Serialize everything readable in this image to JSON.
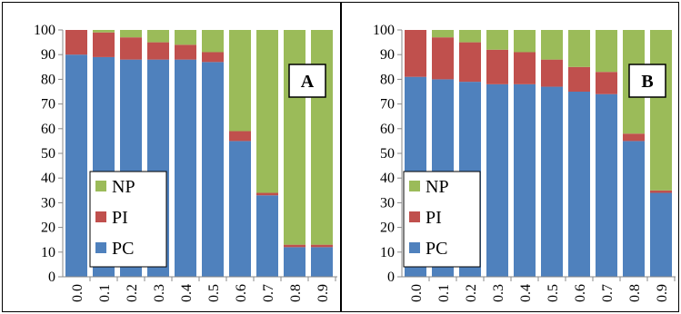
{
  "chart_data": [
    {
      "type": "bar",
      "stacked": true,
      "panel_label": "A",
      "categories": [
        "0.0",
        "0.1",
        "0.2",
        "0.3",
        "0.4",
        "0.5",
        "0.6",
        "0.7",
        "0.8",
        "0.9"
      ],
      "series": [
        {
          "name": "PC",
          "color": "#4f81bd",
          "values": [
            90,
            89,
            88,
            88,
            88,
            87,
            55,
            33,
            12,
            12
          ]
        },
        {
          "name": "PI",
          "color": "#c0504d",
          "values": [
            10,
            10,
            9,
            7,
            6,
            4,
            4,
            1,
            1,
            1
          ]
        },
        {
          "name": "NP",
          "color": "#9bbb59",
          "values": [
            0,
            1,
            3,
            5,
            6,
            9,
            41,
            66,
            87,
            87
          ]
        }
      ],
      "y_ticks": [
        "0",
        "10",
        "20",
        "30",
        "40",
        "50",
        "60",
        "70",
        "80",
        "90",
        "100"
      ],
      "ylim": [
        0,
        100
      ],
      "grid": false,
      "legend_position": "lower-left",
      "legend_entries": [
        "NP",
        "PI",
        "PC"
      ]
    },
    {
      "type": "bar",
      "stacked": true,
      "panel_label": "B",
      "categories": [
        "0.0",
        "0.1",
        "0.2",
        "0.3",
        "0.4",
        "0.5",
        "0.6",
        "0.7",
        "0.8",
        "0.9"
      ],
      "series": [
        {
          "name": "PC",
          "color": "#4f81bd",
          "values": [
            81,
            80,
            79,
            78,
            78,
            77,
            75,
            74,
            55,
            34
          ]
        },
        {
          "name": "PI",
          "color": "#c0504d",
          "values": [
            19,
            17,
            16,
            14,
            13,
            11,
            10,
            9,
            3,
            1
          ]
        },
        {
          "name": "NP",
          "color": "#9bbb59",
          "values": [
            0,
            3,
            5,
            8,
            9,
            12,
            15,
            17,
            42,
            65
          ]
        }
      ],
      "y_ticks": [
        "0",
        "10",
        "20",
        "30",
        "40",
        "50",
        "60",
        "70",
        "80",
        "90",
        "100"
      ],
      "ylim": [
        0,
        100
      ],
      "grid": false,
      "legend_position": "lower-left",
      "legend_entries": [
        "NP",
        "PI",
        "PC"
      ]
    }
  ]
}
